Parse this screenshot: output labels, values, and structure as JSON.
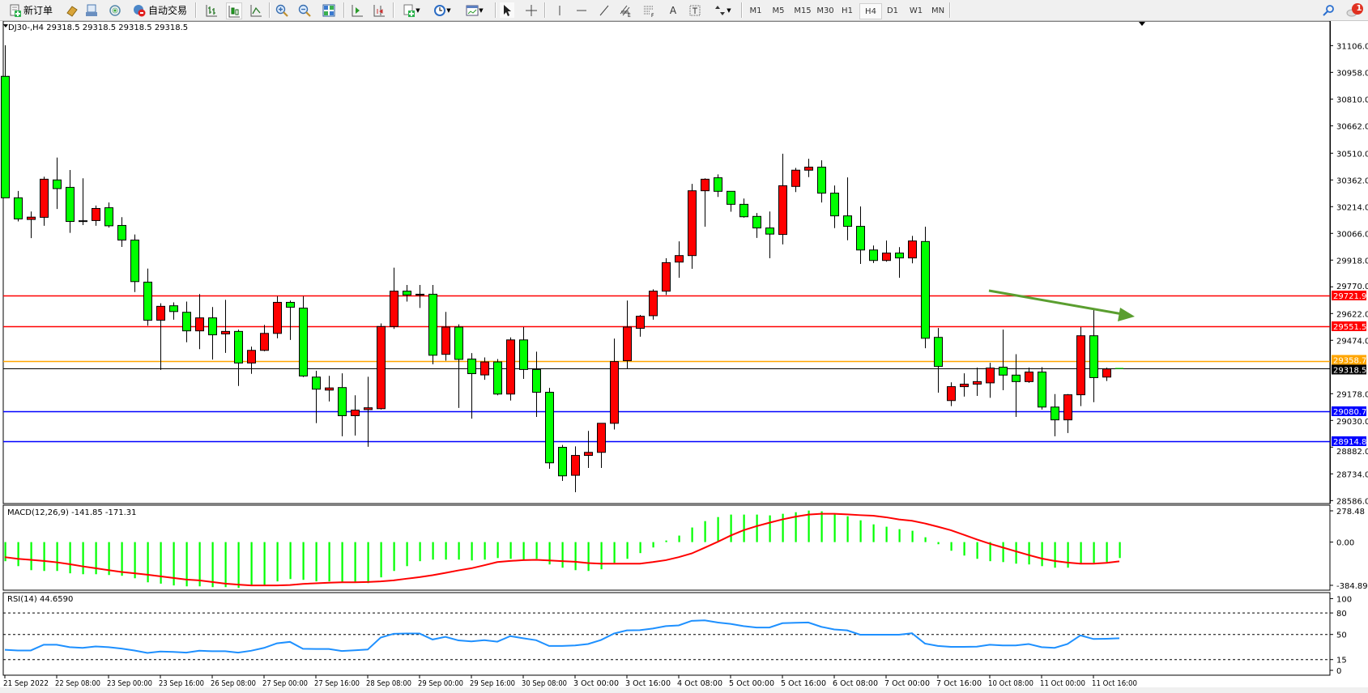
{
  "toolbar": {
    "new_order_label": "新订单",
    "auto_trading_label": "自动交易",
    "timeframes": [
      "M1",
      "M5",
      "M15",
      "M30",
      "H1",
      "H4",
      "D1",
      "W1",
      "MN"
    ],
    "selected_timeframe": "H4",
    "notification_count": "1"
  },
  "chart": {
    "header": "DJ30-,H4  29318.5 29318.5 29318.5 29318.5",
    "bull_color": "#ff0000",
    "bear_color": "#00ff00",
    "price_ticks": [
      "31106.0",
      "30958.0",
      "30810.0",
      "30662.0",
      "30510.0",
      "30362.0",
      "30214.0",
      "30066.0",
      "29918.0",
      "29770.0",
      "29622.0",
      "29474.0",
      "29178.0",
      "29030.0",
      "28882.0",
      "28734.0",
      "28586.0"
    ],
    "current_price": "29318.5",
    "levels": [
      {
        "price": "29721.9",
        "color": "#ff0000"
      },
      {
        "price": "29551.5",
        "color": "#ff0000"
      },
      {
        "price": "29358.7",
        "color": "#ffa500"
      },
      {
        "price": "29080.7",
        "color": "#0000ff"
      },
      {
        "price": "28914.8",
        "color": "#0000ff"
      }
    ],
    "trend_arrow": {
      "color": "#5a9e2f",
      "from": [
        "11 Oct 00:00",
        29760
      ],
      "to": [
        "11 Oct 16:00+",
        29620
      ]
    },
    "time_labels": [
      "21 Sep 2022",
      "22 Sep 08:00",
      "23 Sep 00:00",
      "23 Sep 16:00",
      "26 Sep 08:00",
      "27 Sep 00:00",
      "27 Sep 16:00",
      "28 Sep 08:00",
      "29 Sep 00:00",
      "29 Sep 16:00",
      "30 Sep 08:00",
      "3 Oct 00:00",
      "3 Oct 16:00",
      "4 Oct 08:00",
      "5 Oct 00:00",
      "5 Oct 16:00",
      "6 Oct 08:00",
      "7 Oct 00:00",
      "7 Oct 16:00",
      "10 Oct 08:00",
      "11 Oct 00:00",
      "11 Oct 16:00"
    ]
  },
  "macd": {
    "label": "MACD(12,26,9) -141.85 -171.31",
    "ticks": [
      "278.48",
      "0.00",
      "-384.89"
    ],
    "hist_color": "#00ff00",
    "signal_color": "#ff0000"
  },
  "rsi": {
    "label": "RSI(14) 44.6590",
    "ticks": [
      "100",
      "80",
      "50",
      "15",
      "0"
    ],
    "line_color": "#1e90ff"
  },
  "chart_data": {
    "type": "candlestick",
    "symbol": "DJ30-",
    "timeframe": "H4",
    "ylim": [
      28586,
      31106
    ],
    "ohlc": [
      [
        30936,
        31108,
        30263,
        30263
      ],
      [
        30263,
        30301,
        30132,
        30146
      ],
      [
        30143,
        30187,
        30040,
        30156
      ],
      [
        30155,
        30380,
        30108,
        30366
      ],
      [
        30362,
        30486,
        30201,
        30314
      ],
      [
        30321,
        30417,
        30069,
        30132
      ],
      [
        30136,
        30371,
        30112,
        30136
      ],
      [
        30137,
        30220,
        30108,
        30204
      ],
      [
        30208,
        30237,
        30098,
        30108
      ],
      [
        30110,
        30156,
        29991,
        30029
      ],
      [
        30029,
        30060,
        29741,
        29799
      ],
      [
        29796,
        29871,
        29555,
        29585
      ],
      [
        29585,
        29679,
        29310,
        29662
      ],
      [
        29665,
        29684,
        29588,
        29633
      ],
      [
        29629,
        29688,
        29463,
        29526
      ],
      [
        29526,
        29730,
        29425,
        29598
      ],
      [
        29598,
        29658,
        29367,
        29504
      ],
      [
        29509,
        29698,
        29404,
        29523
      ],
      [
        29523,
        29533,
        29221,
        29348
      ],
      [
        29348,
        29439,
        29288,
        29418
      ],
      [
        29418,
        29559,
        29413,
        29512
      ],
      [
        29512,
        29718,
        29485,
        29684
      ],
      [
        29684,
        29694,
        29476,
        29657
      ],
      [
        29652,
        29718,
        29270,
        29276
      ],
      [
        29270,
        29305,
        29015,
        29203
      ],
      [
        29198,
        29277,
        29135,
        29210
      ],
      [
        29212,
        29291,
        28942,
        29056
      ],
      [
        29056,
        29169,
        28946,
        29087
      ],
      [
        29090,
        29272,
        28884,
        29100
      ],
      [
        29095,
        29567,
        29090,
        29550
      ],
      [
        29550,
        29876,
        29537,
        29746
      ],
      [
        29746,
        29780,
        29688,
        29725
      ],
      [
        29729,
        29780,
        29653,
        29727
      ],
      [
        29729,
        29780,
        29341,
        29391
      ],
      [
        29396,
        29631,
        29361,
        29547
      ],
      [
        29547,
        29562,
        29099,
        29368
      ],
      [
        29370,
        29403,
        29040,
        29289
      ],
      [
        29282,
        29379,
        29255,
        29354
      ],
      [
        29354,
        29370,
        29169,
        29176
      ],
      [
        29176,
        29490,
        29140,
        29476
      ],
      [
        29476,
        29547,
        29260,
        29312
      ],
      [
        29312,
        29411,
        29049,
        29186
      ],
      [
        29186,
        29210,
        28762,
        28795
      ],
      [
        28881,
        28894,
        28695,
        28723
      ],
      [
        28726,
        28886,
        28632,
        28836
      ],
      [
        28836,
        28972,
        28767,
        28853
      ],
      [
        28853,
        29014,
        28767,
        29014
      ],
      [
        29014,
        29483,
        28980,
        29356
      ],
      [
        29361,
        29694,
        29317,
        29547
      ],
      [
        29540,
        29614,
        29494,
        29607
      ],
      [
        29610,
        29756,
        29588,
        29746
      ],
      [
        29746,
        29928,
        29725,
        29904
      ],
      [
        29907,
        30022,
        29820,
        29943
      ],
      [
        29943,
        30340,
        29870,
        30302
      ],
      [
        30302,
        30371,
        30103,
        30366
      ],
      [
        30374,
        30393,
        30268,
        30299
      ],
      [
        30299,
        30299,
        30186,
        30227
      ],
      [
        30227,
        30259,
        30153,
        30158
      ],
      [
        30160,
        30179,
        30041,
        30096
      ],
      [
        30096,
        30187,
        29928,
        30062
      ],
      [
        30060,
        30507,
        30005,
        30330
      ],
      [
        30326,
        30429,
        30295,
        30416
      ],
      [
        30416,
        30479,
        30378,
        30433
      ],
      [
        30433,
        30471,
        30237,
        30289
      ],
      [
        30289,
        30331,
        30095,
        30163
      ],
      [
        30163,
        30376,
        30028,
        30105
      ],
      [
        30105,
        30215,
        29897,
        29974
      ],
      [
        29974,
        29999,
        29902,
        29916
      ],
      [
        29916,
        30026,
        29909,
        29957
      ],
      [
        29957,
        29990,
        29820,
        29930
      ],
      [
        29930,
        30052,
        29900,
        30024
      ],
      [
        30021,
        30103,
        29430,
        29485
      ],
      [
        29490,
        29542,
        29184,
        29329
      ],
      [
        29140,
        29241,
        29109,
        29217
      ],
      [
        29217,
        29291,
        29162,
        29231
      ],
      [
        29231,
        29322,
        29166,
        29245
      ],
      [
        29238,
        29349,
        29155,
        29320
      ],
      [
        29325,
        29533,
        29197,
        29281
      ],
      [
        29281,
        29397,
        29049,
        29245
      ],
      [
        29245,
        29322,
        29238,
        29298
      ],
      [
        29298,
        29325,
        29090,
        29104
      ],
      [
        29104,
        29176,
        28942,
        29033
      ],
      [
        29033,
        29176,
        28960,
        29172
      ],
      [
        29172,
        29547,
        29109,
        29499
      ],
      [
        29499,
        29641,
        29131,
        29267
      ],
      [
        29270,
        29322,
        29248,
        29315
      ],
      [
        29318.5,
        29318.5,
        29318.5,
        29318.5
      ]
    ],
    "macd_ylim": [
      -384.89,
      278.48
    ],
    "macd_hist": [
      -170,
      -214,
      -250,
      -257,
      -257,
      -278,
      -286,
      -286,
      -293,
      -300,
      -322,
      -358,
      -370,
      -386,
      -394,
      -394,
      -401,
      -401,
      -408,
      -386,
      -382,
      -350,
      -329,
      -336,
      -350,
      -350,
      -358,
      -358,
      -365,
      -314,
      -257,
      -214,
      -170,
      -156,
      -156,
      -156,
      -163,
      -156,
      -142,
      -149,
      -156,
      -149,
      -199,
      -228,
      -250,
      -257,
      -242,
      -185,
      -149,
      -98,
      -48,
      14,
      58,
      130,
      187,
      223,
      245,
      245,
      245,
      238,
      252,
      266,
      281,
      274,
      252,
      230,
      194,
      158,
      137,
      115,
      101,
      43,
      -19,
      -77,
      -120,
      -149,
      -170,
      -178,
      -192,
      -199,
      -214,
      -228,
      -228,
      -192,
      -185,
      -178,
      -141.85
    ],
    "macd_signal": [
      -134,
      -149,
      -158,
      -168,
      -180,
      -197,
      -216,
      -233,
      -250,
      -266,
      -278,
      -290,
      -305,
      -319,
      -334,
      -341,
      -355,
      -370,
      -379,
      -386,
      -386,
      -386,
      -382,
      -372,
      -367,
      -362,
      -358,
      -358,
      -355,
      -350,
      -341,
      -326,
      -312,
      -295,
      -274,
      -252,
      -233,
      -206,
      -178,
      -168,
      -161,
      -158,
      -163,
      -170,
      -175,
      -187,
      -192,
      -192,
      -192,
      -192,
      -178,
      -161,
      -134,
      -101,
      -50,
      2,
      58,
      106,
      142,
      173,
      202,
      226,
      245,
      252,
      252,
      247,
      240,
      235,
      221,
      202,
      190,
      166,
      137,
      106,
      65,
      24,
      -14,
      -48,
      -82,
      -115,
      -146,
      -168,
      -182,
      -192,
      -192,
      -185,
      -171.31
    ],
    "rsi_ylim": [
      0,
      100
    ],
    "rsi_levels": [
      80,
      50,
      15
    ],
    "rsi": [
      28.7,
      27.7,
      27.7,
      35.7,
      35.7,
      32.3,
      31.3,
      33.3,
      32.3,
      30.3,
      27.7,
      24.3,
      26.3,
      25.7,
      24.7,
      27.3,
      26.7,
      26.7,
      24.7,
      27.3,
      31.3,
      37.7,
      39.7,
      30,
      29.7,
      29.7,
      27,
      28,
      29,
      45.7,
      51,
      51.3,
      51.3,
      43,
      46.7,
      41.7,
      40.3,
      42,
      40,
      47.7,
      44.7,
      42,
      34,
      34,
      34.7,
      36.7,
      42.3,
      51.3,
      55.7,
      56,
      58.3,
      61.7,
      62.7,
      69,
      69.7,
      66.7,
      64.7,
      61.7,
      59.7,
      59.7,
      65.7,
      66.3,
      66.7,
      60.7,
      57,
      55.7,
      49.7,
      49.7,
      49.7,
      49.7,
      51.7,
      37.3,
      34,
      32.7,
      32.7,
      33,
      35.7,
      34.7,
      34.7,
      36.7,
      32.3,
      31.3,
      36.7,
      48.7,
      43.7,
      44,
      44.659
    ]
  }
}
